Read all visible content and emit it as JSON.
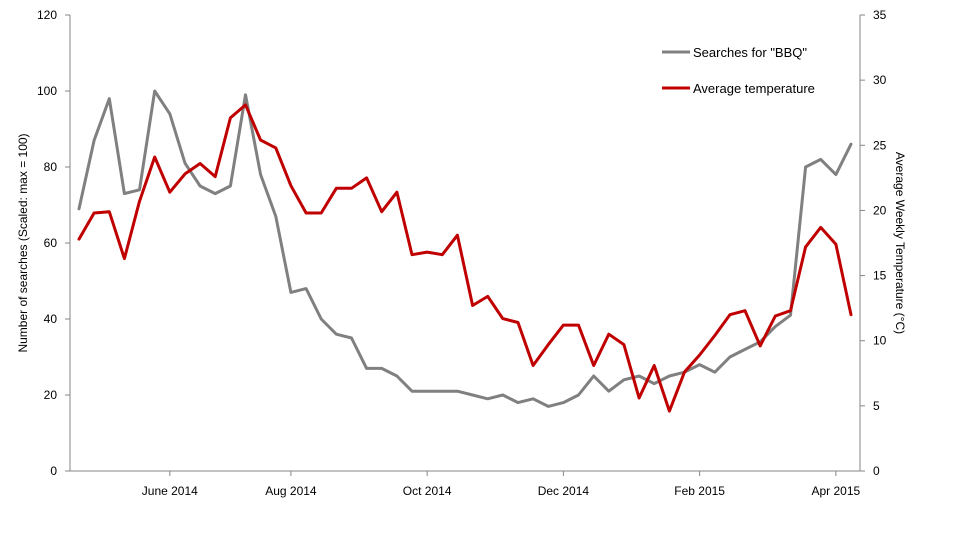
{
  "chart_data": {
    "type": "line",
    "x_tick_labels": [
      "June 2014",
      "Aug 2014",
      "Oct 2014",
      "Dec 2014",
      "Feb 2015",
      "Apr 2015"
    ],
    "x_tick_indices": [
      6,
      14,
      23,
      32,
      41,
      50
    ],
    "ylabel_left": "Number of searches (Scaled: max = 100)",
    "ylabel_right": "Average Weekly Temperature (°C)",
    "ylim_left": [
      0,
      120
    ],
    "yticks_left": [
      0,
      20,
      40,
      60,
      80,
      100,
      120
    ],
    "ylim_right": [
      0,
      35
    ],
    "yticks_right": [
      0,
      5,
      10,
      15,
      20,
      25,
      30,
      35
    ],
    "grid": false,
    "legend_position": "top-right",
    "series": [
      {
        "name": "Searches for \"BBQ\"",
        "axis": "left",
        "color": "#808080",
        "values": [
          69,
          87,
          98,
          73,
          74,
          100,
          94,
          81,
          75,
          73,
          75,
          99,
          78,
          67,
          47,
          48,
          40,
          36,
          35,
          27,
          27,
          25,
          21,
          21,
          21,
          21,
          20,
          19,
          20,
          18,
          19,
          17,
          18,
          20,
          25,
          21,
          24,
          25,
          23,
          25,
          26,
          28,
          26,
          30,
          32,
          34,
          38,
          41,
          80,
          82,
          78,
          86
        ]
      },
      {
        "name": "Average temperature",
        "axis": "right",
        "color": "#c00000",
        "values": [
          17.8,
          19.8,
          19.9,
          16.3,
          20.7,
          24.1,
          21.4,
          22.8,
          23.6,
          22.6,
          27.1,
          28.1,
          25.4,
          24.8,
          21.9,
          19.8,
          19.8,
          21.7,
          21.7,
          22.5,
          19.9,
          21.4,
          16.6,
          16.8,
          16.6,
          18.1,
          12.7,
          13.4,
          11.7,
          11.4,
          8.1,
          9.7,
          11.2,
          11.2,
          8.1,
          10.5,
          9.7,
          5.6,
          8.1,
          4.6,
          7.6,
          8.9,
          10.4,
          12.0,
          12.3,
          9.6,
          11.9,
          12.3,
          17.2,
          18.7,
          17.4,
          12.0
        ]
      }
    ]
  }
}
